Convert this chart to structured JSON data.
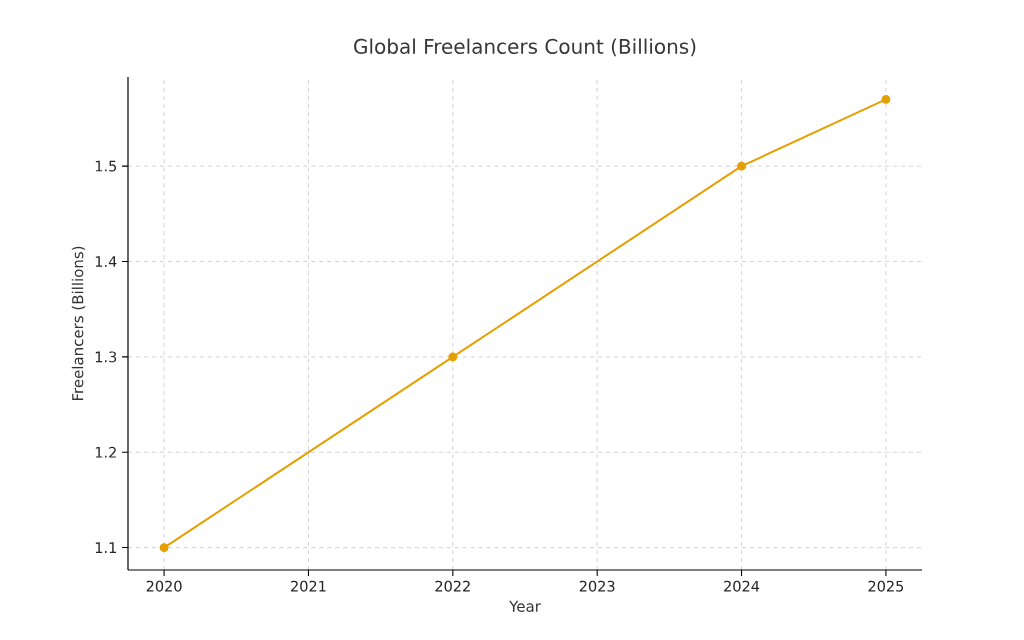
{
  "chart_data": {
    "type": "line",
    "title": "Global Freelancers Count (Billions)",
    "xlabel": "Year",
    "ylabel": "Freelancers (Billions)",
    "x": [
      2020,
      2022,
      2024,
      2025
    ],
    "series": [
      {
        "color": "#e69f00",
        "values": [
          1.1,
          1.3,
          1.5,
          1.57
        ]
      }
    ],
    "xlim": [
      2019.75,
      2025.25
    ],
    "ylim": [
      1.0765,
      1.5935
    ],
    "xticks": [
      2020,
      2021,
      2022,
      2023,
      2024,
      2025
    ],
    "yticks": [
      1.1,
      1.2,
      1.3,
      1.4,
      1.5
    ],
    "grid": true,
    "marker": "circle",
    "line_style": "solid"
  }
}
